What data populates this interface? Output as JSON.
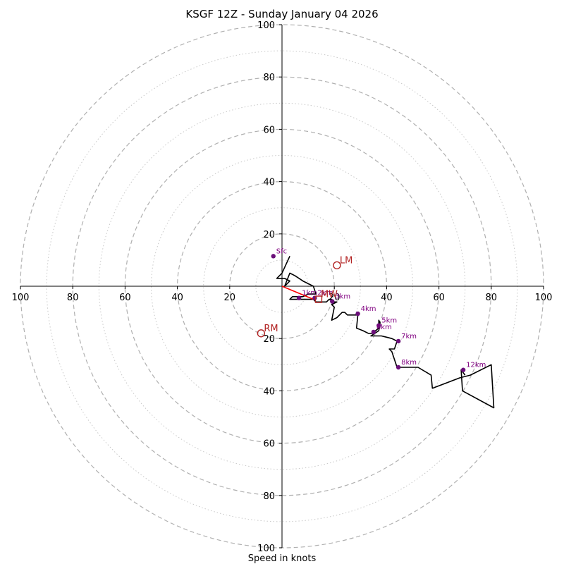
{
  "chart_data": {
    "type": "hodograph",
    "title": "KSGF 12Z - Sunday January 04 2026",
    "xlabel": "Speed in knots",
    "xlim": [
      -100,
      100
    ],
    "ylim": [
      -100,
      100
    ],
    "ring_major": [
      20,
      40,
      60,
      80,
      100
    ],
    "ring_minor": [
      10,
      30,
      50,
      70,
      90
    ],
    "x_tick_labels": [
      "100",
      "80",
      "60",
      "40",
      "20",
      "20",
      "40",
      "60",
      "80",
      "100"
    ],
    "y_tick_labels": [
      "100",
      "80",
      "60",
      "40",
      "20",
      "20",
      "40",
      "60",
      "80",
      "100"
    ],
    "hodo_trace": [
      [
        3,
        11.5
      ],
      [
        0,
        5
      ],
      [
        -2,
        3
      ],
      [
        1,
        3
      ],
      [
        3,
        2
      ],
      [
        1,
        0
      ],
      [
        3,
        5
      ],
      [
        5,
        4
      ],
      [
        8,
        2
      ],
      [
        12,
        0
      ],
      [
        13,
        -3
      ],
      [
        10,
        -3
      ],
      [
        8,
        -4
      ],
      [
        6,
        -4
      ],
      [
        4,
        -4
      ],
      [
        3,
        -5
      ],
      [
        5,
        -5
      ],
      [
        7,
        -5
      ],
      [
        9,
        -5
      ],
      [
        11,
        -5
      ],
      [
        12,
        -5
      ],
      [
        13,
        -6
      ],
      [
        14,
        -6
      ],
      [
        15,
        -6
      ],
      [
        16,
        -6
      ],
      [
        17,
        -6
      ],
      [
        18,
        -5
      ],
      [
        19,
        -5
      ],
      [
        20,
        -6
      ],
      [
        21,
        -6
      ],
      [
        19,
        -7
      ],
      [
        20,
        -8
      ],
      [
        19,
        -13
      ],
      [
        21,
        -12
      ],
      [
        23,
        -10
      ],
      [
        24,
        -10
      ],
      [
        25,
        -11
      ],
      [
        28,
        -11
      ],
      [
        29,
        -11
      ],
      [
        28.5,
        -16
      ],
      [
        31,
        -17
      ],
      [
        33,
        -18
      ],
      [
        34.5,
        -18
      ],
      [
        37,
        -16
      ],
      [
        37,
        -13
      ],
      [
        37.5,
        -14
      ],
      [
        37,
        -17
      ],
      [
        34,
        -19
      ],
      [
        38,
        -19
      ],
      [
        40,
        -19.5
      ],
      [
        42,
        -20
      ],
      [
        44,
        -21
      ],
      [
        43,
        -24
      ],
      [
        41,
        -24
      ],
      [
        42,
        -25
      ],
      [
        44,
        -31
      ],
      [
        52,
        -31
      ],
      [
        57,
        -34
      ],
      [
        57.5,
        -39
      ],
      [
        68,
        -35
      ],
      [
        72,
        -34
      ],
      [
        80,
        -30
      ],
      [
        81,
        -46.5
      ],
      [
        69,
        -40
      ],
      [
        68.5,
        -32
      ],
      [
        70,
        -34
      ]
    ],
    "height_markers": [
      {
        "label": "Sfc",
        "u": -3.3,
        "v": 11.5
      },
      {
        "label": "1km",
        "u": 6.5,
        "v": -4.5
      },
      {
        "label": "2km",
        "u": 12.5,
        "v": -4.5
      },
      {
        "label": "3km",
        "u": 19.2,
        "v": -5.8
      },
      {
        "label": "4km",
        "u": 29,
        "v": -10.5
      },
      {
        "label": "5km",
        "u": 37,
        "v": -15
      },
      {
        "label": "6km",
        "u": 35,
        "v": -17.5
      },
      {
        "label": "7km",
        "u": 44.5,
        "v": -21
      },
      {
        "label": "8km",
        "u": 44.5,
        "v": -31
      },
      {
        "label": "12km",
        "u": 69.3,
        "v": -32
      }
    ],
    "storm_motion": [
      {
        "label": "LM",
        "u": 21,
        "v": 8
      },
      {
        "label": "RM",
        "u": -8,
        "v": -18
      }
    ],
    "mean_wind": {
      "label": "MW",
      "u": 14,
      "v": -5
    },
    "shear_vector": {
      "from": [
        0,
        0
      ],
      "to": [
        12,
        -5
      ]
    },
    "colors": {
      "trace": "#000000",
      "marker": "#6b0f7a",
      "marker_label": "#800080",
      "storm_motion": "#b22222",
      "shear_vector": "#ff0000",
      "grid": "#b0b0b0",
      "axis": "#000000"
    }
  }
}
